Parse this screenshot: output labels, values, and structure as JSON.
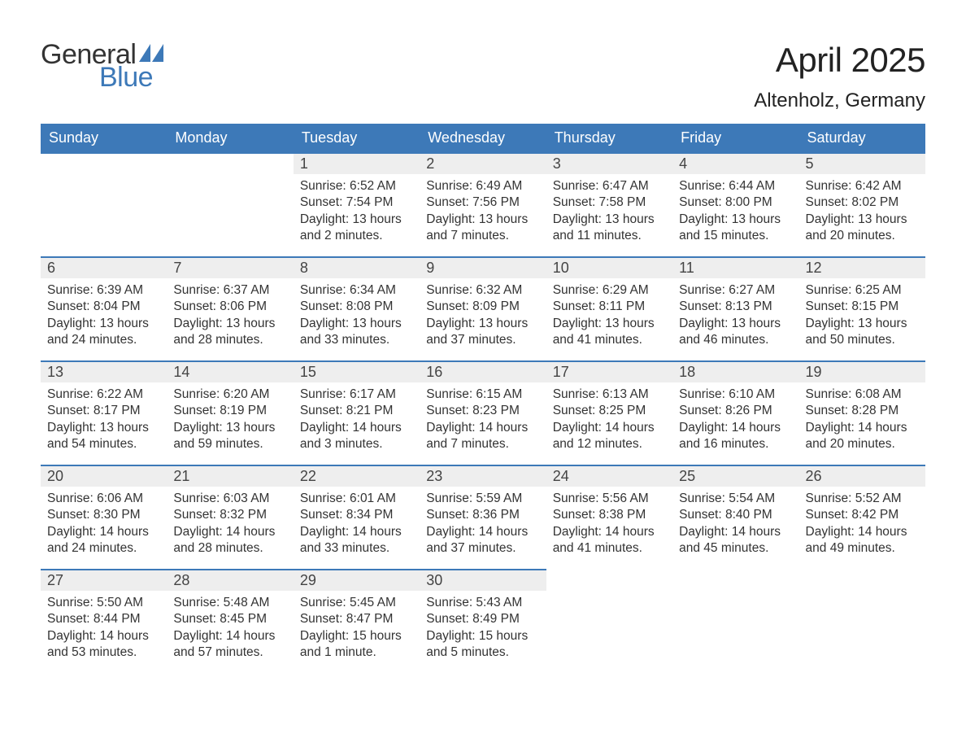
{
  "brand": {
    "word1": "General",
    "word2": "Blue",
    "accent_color": "#3d79b8"
  },
  "header": {
    "month_title": "April 2025",
    "location": "Altenholz, Germany"
  },
  "styling": {
    "page_bg": "#ffffff",
    "header_bg": "#3d79b8",
    "header_text_color": "#ffffff",
    "daynum_bar_bg": "#eeeeee",
    "cell_border_top": "#3d79b8",
    "body_text_color": "#333333",
    "month_title_fontsize": 42,
    "location_fontsize": 24,
    "header_cell_fontsize": 18,
    "daynum_fontsize": 18,
    "body_fontsize": 15.5
  },
  "weekdays": [
    "Sunday",
    "Monday",
    "Tuesday",
    "Wednesday",
    "Thursday",
    "Friday",
    "Saturday"
  ],
  "weeks": [
    [
      {
        "empty": true
      },
      {
        "empty": true
      },
      {
        "day": "1",
        "sunrise": "Sunrise: 6:52 AM",
        "sunset": "Sunset: 7:54 PM",
        "daylight": "Daylight: 13 hours and 2 minutes."
      },
      {
        "day": "2",
        "sunrise": "Sunrise: 6:49 AM",
        "sunset": "Sunset: 7:56 PM",
        "daylight": "Daylight: 13 hours and 7 minutes."
      },
      {
        "day": "3",
        "sunrise": "Sunrise: 6:47 AM",
        "sunset": "Sunset: 7:58 PM",
        "daylight": "Daylight: 13 hours and 11 minutes."
      },
      {
        "day": "4",
        "sunrise": "Sunrise: 6:44 AM",
        "sunset": "Sunset: 8:00 PM",
        "daylight": "Daylight: 13 hours and 15 minutes."
      },
      {
        "day": "5",
        "sunrise": "Sunrise: 6:42 AM",
        "sunset": "Sunset: 8:02 PM",
        "daylight": "Daylight: 13 hours and 20 minutes."
      }
    ],
    [
      {
        "day": "6",
        "sunrise": "Sunrise: 6:39 AM",
        "sunset": "Sunset: 8:04 PM",
        "daylight": "Daylight: 13 hours and 24 minutes."
      },
      {
        "day": "7",
        "sunrise": "Sunrise: 6:37 AM",
        "sunset": "Sunset: 8:06 PM",
        "daylight": "Daylight: 13 hours and 28 minutes."
      },
      {
        "day": "8",
        "sunrise": "Sunrise: 6:34 AM",
        "sunset": "Sunset: 8:08 PM",
        "daylight": "Daylight: 13 hours and 33 minutes."
      },
      {
        "day": "9",
        "sunrise": "Sunrise: 6:32 AM",
        "sunset": "Sunset: 8:09 PM",
        "daylight": "Daylight: 13 hours and 37 minutes."
      },
      {
        "day": "10",
        "sunrise": "Sunrise: 6:29 AM",
        "sunset": "Sunset: 8:11 PM",
        "daylight": "Daylight: 13 hours and 41 minutes."
      },
      {
        "day": "11",
        "sunrise": "Sunrise: 6:27 AM",
        "sunset": "Sunset: 8:13 PM",
        "daylight": "Daylight: 13 hours and 46 minutes."
      },
      {
        "day": "12",
        "sunrise": "Sunrise: 6:25 AM",
        "sunset": "Sunset: 8:15 PM",
        "daylight": "Daylight: 13 hours and 50 minutes."
      }
    ],
    [
      {
        "day": "13",
        "sunrise": "Sunrise: 6:22 AM",
        "sunset": "Sunset: 8:17 PM",
        "daylight": "Daylight: 13 hours and 54 minutes."
      },
      {
        "day": "14",
        "sunrise": "Sunrise: 6:20 AM",
        "sunset": "Sunset: 8:19 PM",
        "daylight": "Daylight: 13 hours and 59 minutes."
      },
      {
        "day": "15",
        "sunrise": "Sunrise: 6:17 AM",
        "sunset": "Sunset: 8:21 PM",
        "daylight": "Daylight: 14 hours and 3 minutes."
      },
      {
        "day": "16",
        "sunrise": "Sunrise: 6:15 AM",
        "sunset": "Sunset: 8:23 PM",
        "daylight": "Daylight: 14 hours and 7 minutes."
      },
      {
        "day": "17",
        "sunrise": "Sunrise: 6:13 AM",
        "sunset": "Sunset: 8:25 PM",
        "daylight": "Daylight: 14 hours and 12 minutes."
      },
      {
        "day": "18",
        "sunrise": "Sunrise: 6:10 AM",
        "sunset": "Sunset: 8:26 PM",
        "daylight": "Daylight: 14 hours and 16 minutes."
      },
      {
        "day": "19",
        "sunrise": "Sunrise: 6:08 AM",
        "sunset": "Sunset: 8:28 PM",
        "daylight": "Daylight: 14 hours and 20 minutes."
      }
    ],
    [
      {
        "day": "20",
        "sunrise": "Sunrise: 6:06 AM",
        "sunset": "Sunset: 8:30 PM",
        "daylight": "Daylight: 14 hours and 24 minutes."
      },
      {
        "day": "21",
        "sunrise": "Sunrise: 6:03 AM",
        "sunset": "Sunset: 8:32 PM",
        "daylight": "Daylight: 14 hours and 28 minutes."
      },
      {
        "day": "22",
        "sunrise": "Sunrise: 6:01 AM",
        "sunset": "Sunset: 8:34 PM",
        "daylight": "Daylight: 14 hours and 33 minutes."
      },
      {
        "day": "23",
        "sunrise": "Sunrise: 5:59 AM",
        "sunset": "Sunset: 8:36 PM",
        "daylight": "Daylight: 14 hours and 37 minutes."
      },
      {
        "day": "24",
        "sunrise": "Sunrise: 5:56 AM",
        "sunset": "Sunset: 8:38 PM",
        "daylight": "Daylight: 14 hours and 41 minutes."
      },
      {
        "day": "25",
        "sunrise": "Sunrise: 5:54 AM",
        "sunset": "Sunset: 8:40 PM",
        "daylight": "Daylight: 14 hours and 45 minutes."
      },
      {
        "day": "26",
        "sunrise": "Sunrise: 5:52 AM",
        "sunset": "Sunset: 8:42 PM",
        "daylight": "Daylight: 14 hours and 49 minutes."
      }
    ],
    [
      {
        "day": "27",
        "sunrise": "Sunrise: 5:50 AM",
        "sunset": "Sunset: 8:44 PM",
        "daylight": "Daylight: 14 hours and 53 minutes."
      },
      {
        "day": "28",
        "sunrise": "Sunrise: 5:48 AM",
        "sunset": "Sunset: 8:45 PM",
        "daylight": "Daylight: 14 hours and 57 minutes."
      },
      {
        "day": "29",
        "sunrise": "Sunrise: 5:45 AM",
        "sunset": "Sunset: 8:47 PM",
        "daylight": "Daylight: 15 hours and 1 minute."
      },
      {
        "day": "30",
        "sunrise": "Sunrise: 5:43 AM",
        "sunset": "Sunset: 8:49 PM",
        "daylight": "Daylight: 15 hours and 5 minutes."
      },
      {
        "empty": true,
        "noborder": true
      },
      {
        "empty": true,
        "noborder": true
      },
      {
        "empty": true,
        "noborder": true
      }
    ]
  ]
}
